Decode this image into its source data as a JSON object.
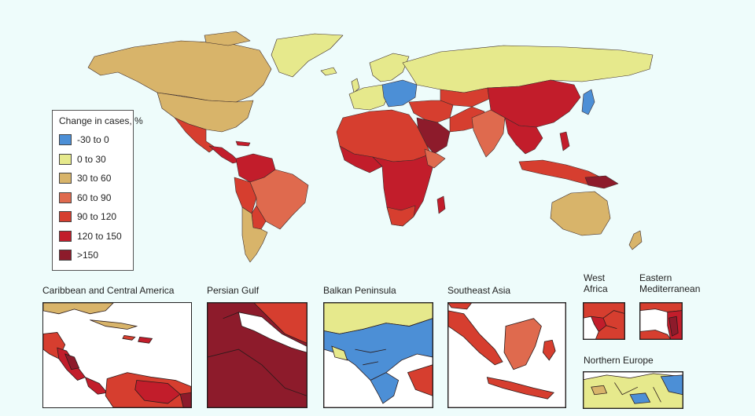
{
  "legend": {
    "title": "Change in cases, %",
    "items": [
      {
        "label": "-30 to 0",
        "color": "#4c8fd6"
      },
      {
        "label": "0 to 30",
        "color": "#e6e98c"
      },
      {
        "label": "30 to 60",
        "color": "#d8b46a"
      },
      {
        "label": "60 to 90",
        "color": "#df6a4e"
      },
      {
        "label": "90 to 120",
        "color": "#d63e2f"
      },
      {
        "label": "120 to 150",
        "color": "#c21d2b"
      },
      {
        "label": ">150",
        "color": "#8d1b2b"
      }
    ]
  },
  "insets": {
    "caribbean": "Caribbean and Central America",
    "persian_gulf": "Persian Gulf",
    "balkan": "Balkan Peninsula",
    "southeast_asia": "Southeast Asia",
    "west_africa_1": "West",
    "west_africa_2": "Africa",
    "east_med_1": "Eastern",
    "east_med_2": "Mediterranean",
    "northern_europe": "Northern Europe"
  }
}
